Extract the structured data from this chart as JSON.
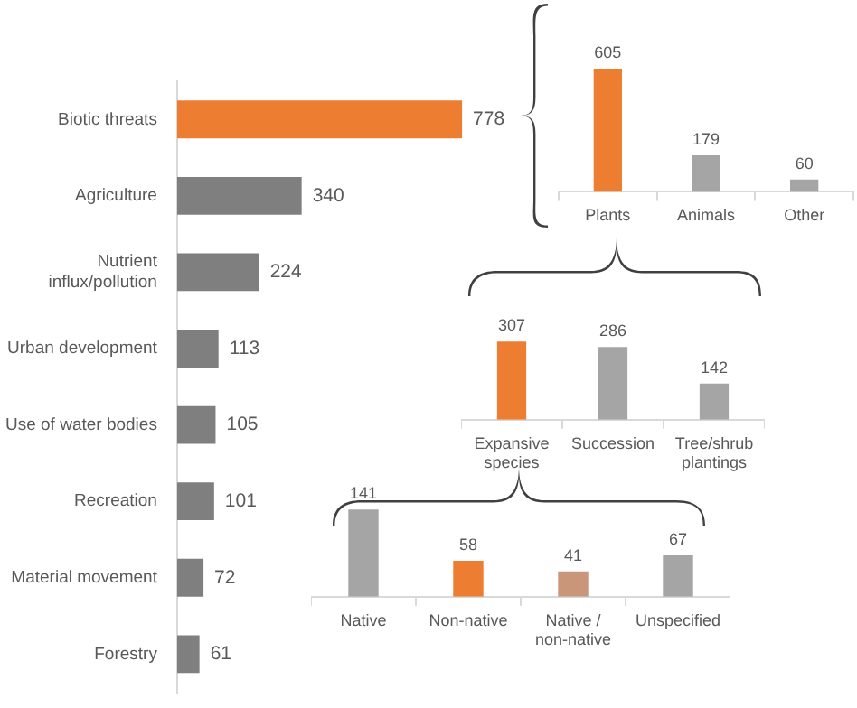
{
  "chart_data": [
    {
      "type": "bar",
      "orientation": "horizontal",
      "data_labels": true,
      "categories": [
        "Biotic threats",
        "Agriculture",
        "Nutrient influx/pollution",
        "Urban development",
        "Use of water bodies",
        "Recreation",
        "Material movement",
        "Forestry"
      ],
      "values": [
        778,
        340,
        224,
        113,
        105,
        101,
        72,
        61
      ],
      "colors": [
        "#ed7d31",
        "#7f7f7f",
        "#7f7f7f",
        "#7f7f7f",
        "#7f7f7f",
        "#7f7f7f",
        "#7f7f7f",
        "#7f7f7f"
      ]
    },
    {
      "type": "bar",
      "data_labels": true,
      "categories": [
        "Plants",
        "Animals",
        "Other"
      ],
      "values": [
        605,
        179,
        60
      ],
      "colors": [
        "#ed7d31",
        "#a5a5a5",
        "#a5a5a5"
      ]
    },
    {
      "type": "bar",
      "data_labels": true,
      "categories": [
        "Expansive species",
        "Succession",
        "Tree/shrub plantings"
      ],
      "values": [
        307,
        286,
        142
      ],
      "colors": [
        "#ed7d31",
        "#a5a5a5",
        "#a5a5a5"
      ]
    },
    {
      "type": "bar",
      "data_labels": true,
      "categories": [
        "Native",
        "Non-native",
        "Native / non-native",
        "Unspecified"
      ],
      "values": [
        141,
        58,
        41,
        67
      ],
      "colors": [
        "#a5a5a5",
        "#ed7d31",
        "#c9967a",
        "#a5a5a5"
      ]
    }
  ]
}
